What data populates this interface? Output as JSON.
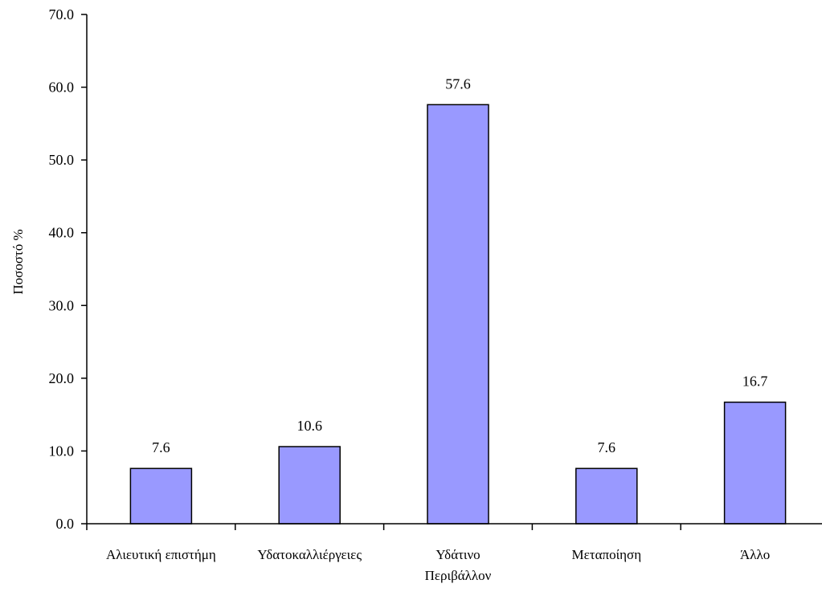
{
  "chart_data": {
    "type": "bar",
    "title": "",
    "xlabel": "",
    "ylabel": "Ποσοστό %",
    "ylim": [
      0,
      70
    ],
    "yticks": [
      "0.0",
      "10.0",
      "20.0",
      "30.0",
      "40.0",
      "50.0",
      "60.0",
      "70.0"
    ],
    "categories": [
      [
        "Αλιευτική επιστήμη"
      ],
      [
        "Υδατοκαλλιέργειες"
      ],
      [
        "Υδάτινο",
        "Περιβάλλον"
      ],
      [
        "Μεταποίηση"
      ],
      [
        "Άλλο"
      ]
    ],
    "values": [
      7.6,
      10.6,
      57.6,
      7.6,
      16.7
    ],
    "value_labels": [
      "7.6",
      "10.6",
      "57.6",
      "7.6",
      "16.7"
    ],
    "bar_color": "#9999ff",
    "bar_edge_color": "#000000",
    "grid": false,
    "legend": "none"
  }
}
